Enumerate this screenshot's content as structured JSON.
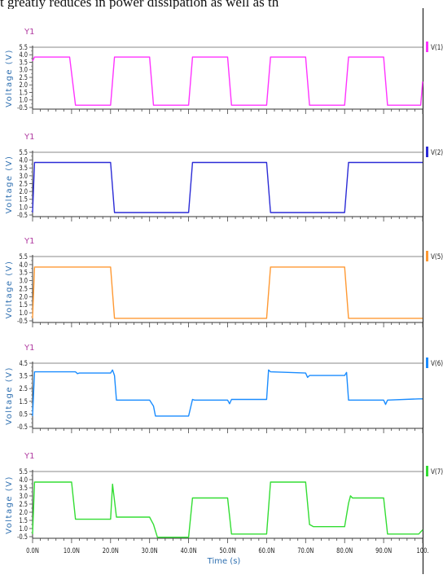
{
  "caption": "t greatly reduces in power dissipation as well as th",
  "x_tick_labels": [
    "0.0N",
    "10.0N",
    "20.0N",
    "30.0N",
    "40.0N",
    "50.0N",
    "60.0N",
    "70.0N",
    "80.0N",
    "90.0N",
    "100."
  ],
  "chart_data": {
    "type": "line",
    "xlabel": "Time (s)",
    "xlim": [
      0,
      100
    ],
    "panels": [
      {
        "panel_label": "Y1",
        "ylabel": "Voltage (V)",
        "ylim": [
          -0.8,
          5.5
        ],
        "yticks": [
          "-0.5",
          "1.0",
          "1.5",
          "2.0",
          "2.5",
          "3.0",
          "3.5",
          "4.0",
          "5.5"
        ],
        "series": [
          {
            "name": "V(1)",
            "color": "#ff33ff",
            "x": [
              0,
              0.5,
              9.5,
              11,
              20,
              21,
              30,
              31,
              40,
              41,
              50,
              51,
              60,
              61,
              70,
              71,
              80,
              81,
              90,
              91,
              99.5,
              100
            ],
            "y": [
              4.1,
              4.5,
              4.5,
              -0.4,
              -0.4,
              4.5,
              4.5,
              -0.4,
              -0.4,
              4.5,
              4.5,
              -0.4,
              -0.4,
              4.5,
              4.5,
              -0.4,
              -0.4,
              4.5,
              4.5,
              -0.4,
              -0.4,
              2.0
            ]
          }
        ]
      },
      {
        "panel_label": "Y1",
        "ylabel": "Voltage (V)",
        "ylim": [
          -0.8,
          5.5
        ],
        "yticks": [
          "-0.5",
          "1.0",
          "1.5",
          "2.0",
          "2.5",
          "3.0",
          "3.5",
          "4.0",
          "5.5"
        ],
        "series": [
          {
            "name": "V(2)",
            "color": "#2b2bd6",
            "x": [
              0,
              0.5,
              20,
              21,
              40,
              41,
              60,
              61,
              80,
              81,
              100
            ],
            "y": [
              -0.4,
              4.5,
              4.5,
              -0.4,
              -0.4,
              4.5,
              4.5,
              -0.4,
              -0.4,
              4.5,
              4.5
            ]
          }
        ]
      },
      {
        "panel_label": "Y1",
        "ylabel": "Voltage (V)",
        "ylim": [
          -0.8,
          5.5
        ],
        "yticks": [
          "-0.5",
          "1.0",
          "1.5",
          "2.0",
          "2.5",
          "3.0",
          "3.5",
          "4.0",
          "5.5"
        ],
        "series": [
          {
            "name": "V(5)",
            "color": "#ff9933",
            "x": [
              0,
              0.5,
              20,
              21,
              60,
              61,
              80,
              81,
              100
            ],
            "y": [
              -0.4,
              4.5,
              4.5,
              -0.4,
              -0.4,
              4.5,
              4.5,
              -0.4,
              -0.4
            ]
          }
        ]
      },
      {
        "panel_label": "Y1",
        "ylabel": "Voltage (V)",
        "ylim": [
          -0.8,
          4.5
        ],
        "yticks": [
          "-0.5",
          "0.5",
          "1.5",
          "2.5",
          "3.5",
          "4.5"
        ],
        "series": [
          {
            "name": "V(6)",
            "color": "#1a8cff",
            "x": [
              0,
              0.5,
              11,
              11.5,
              12,
              20,
              20.5,
              21,
              21.5,
              30,
              31,
              31.5,
              32,
              40,
              41,
              41.5,
              42,
              50,
              50.5,
              51,
              60,
              60.5,
              61,
              70,
              70.5,
              71,
              80,
              80.5,
              81,
              90,
              90.5,
              91,
              99,
              100
            ],
            "y": [
              0.2,
              3.8,
              3.8,
              3.65,
              3.7,
              3.7,
              3.95,
              3.5,
              1.5,
              1.5,
              1.0,
              0.2,
              0.2,
              0.2,
              1.55,
              1.5,
              1.5,
              1.5,
              1.2,
              1.55,
              1.55,
              3.95,
              3.8,
              3.7,
              3.35,
              3.5,
              3.5,
              3.75,
              1.5,
              1.5,
              1.15,
              1.5,
              1.6,
              1.6
            ]
          }
        ]
      },
      {
        "panel_label": "Y1",
        "ylabel": "Voltage (V)",
        "ylim": [
          -0.8,
          5.5
        ],
        "yticks": [
          "-0.5",
          "1.0",
          "1.5",
          "2.0",
          "2.5",
          "3.0",
          "3.5",
          "4.0",
          "5.5"
        ],
        "series": [
          {
            "name": "V(7)",
            "color": "#33dd33",
            "x": [
              0,
              0.5,
              10,
              11,
              20,
              20.5,
              21.5,
              22,
              30,
              31,
              32,
              40,
              41,
              50,
              51,
              60,
              61,
              70,
              71,
              72,
              80,
              81,
              81.5,
              82,
              90,
              91,
              99,
              100
            ],
            "y": [
              -0.4,
              4.5,
              4.5,
              1.0,
              1.0,
              4.3,
              1.2,
              1.2,
              1.2,
              0.5,
              -0.7,
              -0.7,
              3.0,
              3.0,
              -0.4,
              -0.4,
              4.5,
              4.5,
              0.5,
              0.3,
              0.3,
              2.5,
              3.2,
              3.0,
              3.0,
              -0.4,
              -0.4,
              0.0
            ]
          }
        ]
      }
    ]
  }
}
